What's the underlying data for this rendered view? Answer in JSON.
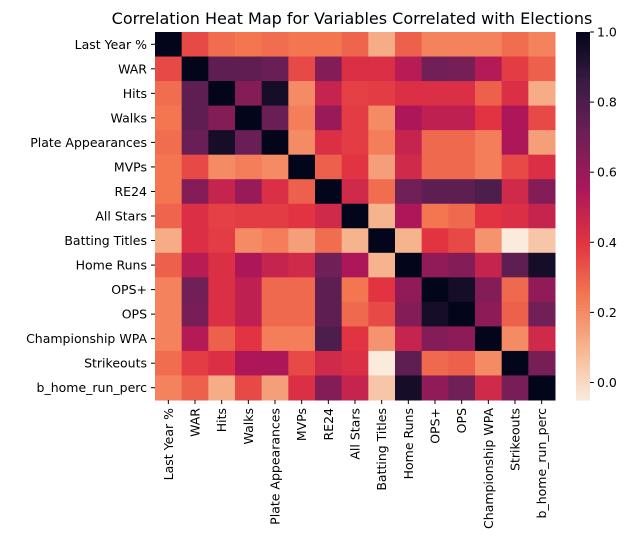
{
  "chart_data": {
    "type": "heatmap",
    "title": "Correlation Heat Map for Variables Correlated with Elections",
    "labels": [
      "Last Year %",
      "WAR",
      "Hits",
      "Walks",
      "Plate Appearances",
      "MVPs",
      "RE24",
      "All Stars",
      "Batting Titles",
      "Home Runs",
      "OPS+",
      "OPS",
      "Championship WPA",
      "Strikeouts",
      "b_home_run_perc"
    ],
    "values": [
      [
        1,
        0.35,
        0.27,
        0.25,
        0.27,
        0.25,
        0.25,
        0.29,
        0.12,
        0.3,
        0.22,
        0.22,
        0.22,
        0.27,
        0.22
      ],
      [
        0.35,
        1,
        0.75,
        0.75,
        0.72,
        0.35,
        0.65,
        0.42,
        0.42,
        0.52,
        0.7,
        0.68,
        0.53,
        0.38,
        0.3
      ],
      [
        0.27,
        0.75,
        1,
        0.65,
        0.95,
        0.2,
        0.48,
        0.37,
        0.38,
        0.42,
        0.42,
        0.42,
        0.3,
        0.42,
        0.12
      ],
      [
        0.25,
        0.75,
        0.65,
        1,
        0.72,
        0.23,
        0.6,
        0.38,
        0.2,
        0.55,
        0.5,
        0.5,
        0.4,
        0.55,
        0.35
      ],
      [
        0.27,
        0.72,
        0.95,
        0.72,
        1,
        0.2,
        0.42,
        0.38,
        0.23,
        0.48,
        0.28,
        0.28,
        0.23,
        0.55,
        0.15
      ],
      [
        0.25,
        0.35,
        0.2,
        0.23,
        0.2,
        1,
        0.3,
        0.4,
        0.15,
        0.45,
        0.28,
        0.28,
        0.23,
        0.35,
        0.42
      ],
      [
        0.25,
        0.65,
        0.48,
        0.6,
        0.42,
        0.3,
        1,
        0.45,
        0.27,
        0.7,
        0.75,
        0.75,
        0.8,
        0.45,
        0.65
      ],
      [
        0.29,
        0.42,
        0.37,
        0.38,
        0.38,
        0.4,
        0.45,
        1,
        0.1,
        0.55,
        0.25,
        0.28,
        0.4,
        0.42,
        0.48
      ],
      [
        0.12,
        0.42,
        0.38,
        0.2,
        0.23,
        0.15,
        0.27,
        0.1,
        1,
        0.1,
        0.4,
        0.35,
        0.18,
        -0.05,
        0.05
      ],
      [
        0.3,
        0.52,
        0.42,
        0.55,
        0.48,
        0.45,
        0.7,
        0.55,
        0.1,
        1,
        0.62,
        0.65,
        0.48,
        0.75,
        0.95
      ],
      [
        0.22,
        0.7,
        0.42,
        0.5,
        0.28,
        0.28,
        0.75,
        0.25,
        0.4,
        0.62,
        1,
        0.95,
        0.65,
        0.28,
        0.62
      ],
      [
        0.22,
        0.68,
        0.42,
        0.5,
        0.28,
        0.28,
        0.75,
        0.28,
        0.35,
        0.65,
        0.95,
        1,
        0.63,
        0.3,
        0.7
      ],
      [
        0.22,
        0.53,
        0.3,
        0.4,
        0.23,
        0.23,
        0.8,
        0.4,
        0.18,
        0.48,
        0.65,
        0.63,
        1,
        0.2,
        0.45
      ],
      [
        0.27,
        0.38,
        0.42,
        0.55,
        0.55,
        0.35,
        0.45,
        0.42,
        -0.05,
        0.75,
        0.28,
        0.3,
        0.2,
        1,
        0.68
      ],
      [
        0.22,
        0.3,
        0.12,
        0.35,
        0.15,
        0.42,
        0.65,
        0.48,
        0.05,
        0.95,
        0.62,
        0.7,
        0.45,
        0.68,
        1
      ]
    ],
    "colorbar": {
      "range": [
        -0.05,
        1.0
      ],
      "ticks": [
        0.0,
        0.2,
        0.4,
        0.6,
        0.8,
        1.0
      ],
      "tick_labels": [
        "0.0",
        "0.2",
        "0.4",
        "0.6",
        "0.8",
        "1.0"
      ],
      "colormap": [
        "#03051a",
        "#3b1c46",
        "#701f57",
        "#ad1759",
        "#e13342",
        "#f37651",
        "#f6b48e",
        "#faebdd"
      ]
    },
    "grid": false
  }
}
